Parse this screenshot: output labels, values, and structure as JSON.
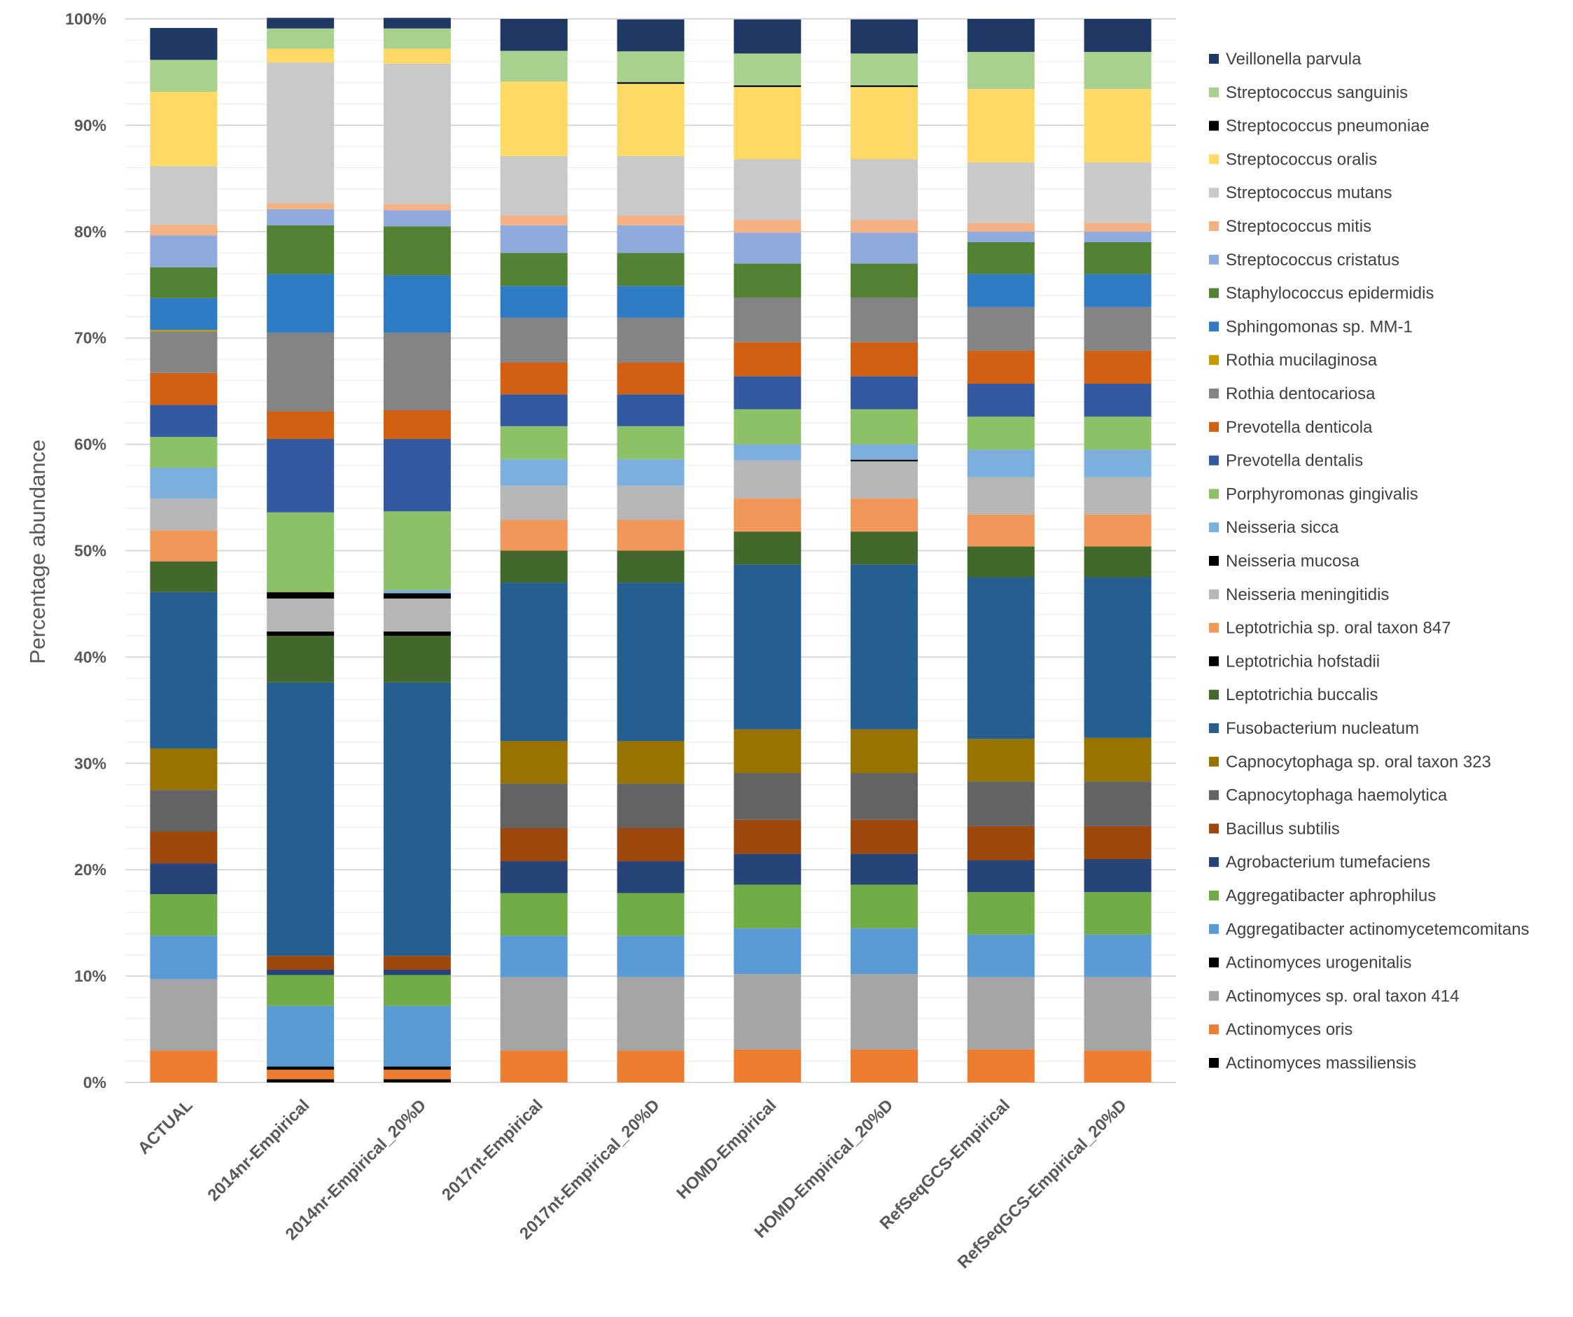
{
  "chart_data": {
    "type": "bar",
    "stacked": true,
    "ylabel": "Percentage abundance",
    "xlabel": "",
    "ylim": [
      0,
      100
    ],
    "yticks": [
      "0%",
      "10%",
      "20%",
      "30%",
      "40%",
      "50%",
      "60%",
      "70%",
      "80%",
      "90%",
      "100%"
    ],
    "grid": true,
    "legend_position": "right",
    "categories": [
      "ACTUAL",
      "2014nr-Empirical",
      "2014nr-Empirical_20%D",
      "2017nt-Empirical",
      "2017nt-Empirical_20%D",
      "HOMD-Empirical",
      "HOMD-Empirical_20%D",
      "RefSeqGCS-Empirical",
      "RefSeqGCS-Empirical_20%D"
    ],
    "series": [
      {
        "name": "Actinomyces massiliensis",
        "color": "#000000",
        "values": [
          0,
          0.3,
          0.3,
          0,
          0,
          0,
          0,
          0,
          0
        ]
      },
      {
        "name": "Actinomyces oris",
        "color": "#ED7D31",
        "values": [
          3.0,
          0.9,
          0.9,
          3.0,
          3.0,
          3.1,
          3.1,
          3.1,
          3.0
        ]
      },
      {
        "name": "Actinomyces sp. oral taxon 414",
        "color": "#A5A5A5",
        "values": [
          6.7,
          0,
          0,
          6.9,
          6.9,
          7.1,
          7.1,
          6.8,
          6.9
        ]
      },
      {
        "name": "Actinomyces urogenitalis",
        "color": "#000000",
        "values": [
          0,
          0.3,
          0.3,
          0,
          0,
          0,
          0,
          0,
          0
        ]
      },
      {
        "name": "Aggregatibacter actinomycetemcomitans",
        "color": "#5B9BD5",
        "values": [
          4.1,
          5.7,
          5.7,
          3.9,
          3.9,
          4.3,
          4.3,
          4.0,
          4.0
        ]
      },
      {
        "name": "Aggregatibacter aphrophilus",
        "color": "#70AD47",
        "values": [
          3.9,
          2.9,
          2.9,
          4.0,
          4.0,
          4.1,
          4.1,
          4.0,
          4.0
        ]
      },
      {
        "name": "Agrobacterium tumefaciens",
        "color": "#264478",
        "values": [
          2.9,
          0.5,
          0.5,
          3.0,
          3.0,
          2.9,
          2.9,
          3.0,
          3.1
        ]
      },
      {
        "name": "Bacillus subtilis",
        "color": "#9E480E",
        "values": [
          3.0,
          1.3,
          1.3,
          3.1,
          3.1,
          3.2,
          3.2,
          3.2,
          3.1
        ]
      },
      {
        "name": "Capnocytophaga haemolytica",
        "color": "#636363",
        "values": [
          3.9,
          0,
          0,
          4.2,
          4.2,
          4.4,
          4.4,
          4.2,
          4.2
        ]
      },
      {
        "name": "Capnocytophaga sp. oral taxon 323",
        "color": "#997300",
        "values": [
          3.9,
          0,
          0,
          4.0,
          4.0,
          4.1,
          4.1,
          4.0,
          4.1
        ]
      },
      {
        "name": "Fusobacterium nucleatum",
        "color": "#255E91",
        "values": [
          14.7,
          25.7,
          25.7,
          14.9,
          14.9,
          15.5,
          15.5,
          15.2,
          15.1
        ]
      },
      {
        "name": "Leptotrichia buccalis",
        "color": "#43682B",
        "values": [
          2.9,
          4.4,
          4.4,
          3.0,
          3.0,
          3.1,
          3.1,
          2.9,
          2.9
        ]
      },
      {
        "name": "Leptotrichia hofstadii",
        "color": "#000000",
        "values": [
          0,
          0.4,
          0.4,
          0,
          0,
          0,
          0,
          0,
          0
        ]
      },
      {
        "name": "Leptotrichia sp. oral taxon 847",
        "color": "#F1975A",
        "values": [
          2.9,
          0,
          0,
          2.9,
          2.9,
          3.1,
          3.1,
          3.0,
          3.0
        ]
      },
      {
        "name": "Neisseria meningitidis",
        "color": "#B7B7B7",
        "values": [
          3.0,
          3.1,
          3.1,
          3.2,
          3.2,
          3.6,
          3.5,
          3.5,
          3.5
        ]
      },
      {
        "name": "Neisseria mucosa",
        "color": "#000000",
        "values": [
          0,
          0.6,
          0.5,
          0,
          0,
          0,
          0.15,
          0,
          0
        ]
      },
      {
        "name": "Neisseria sicca",
        "color": "#7CAFDD",
        "values": [
          2.9,
          0,
          0.3,
          2.5,
          2.5,
          1.5,
          1.45,
          2.6,
          2.6
        ]
      },
      {
        "name": "Porphyromonas gingivalis",
        "color": "#8CC168",
        "values": [
          2.9,
          7.5,
          7.4,
          3.1,
          3.1,
          3.3,
          3.3,
          3.1,
          3.1
        ]
      },
      {
        "name": "Prevotella dentalis",
        "color": "#335AA1",
        "values": [
          3.0,
          6.9,
          6.8,
          3.0,
          3.0,
          3.1,
          3.1,
          3.1,
          3.1
        ]
      },
      {
        "name": "Prevotella denticola",
        "color": "#D26012",
        "values": [
          3.0,
          2.6,
          2.7,
          3.0,
          3.0,
          3.2,
          3.2,
          3.1,
          3.1
        ]
      },
      {
        "name": "Rothia dentocariosa",
        "color": "#848484",
        "values": [
          3.9,
          7.4,
          7.3,
          4.2,
          4.2,
          4.2,
          4.2,
          4.1,
          4.1
        ]
      },
      {
        "name": "Rothia mucilaginosa",
        "color": "#C49A00",
        "values": [
          0.15,
          0,
          0,
          0,
          0,
          0,
          0,
          0,
          0
        ]
      },
      {
        "name": "Sphingomonas sp. MM-1",
        "color": "#2E7BC4",
        "values": [
          3.0,
          5.5,
          5.4,
          3.0,
          3.0,
          0,
          0,
          3.1,
          3.1
        ]
      },
      {
        "name": "Staphylococcus epidermidis",
        "color": "#548235",
        "values": [
          2.9,
          4.6,
          4.6,
          3.1,
          3.1,
          3.2,
          3.2,
          3.0,
          3.0
        ]
      },
      {
        "name": "Streptococcus cristatus",
        "color": "#8FAADC",
        "values": [
          3.0,
          1.5,
          1.5,
          2.6,
          2.6,
          2.9,
          2.9,
          1.0,
          1.0
        ]
      },
      {
        "name": "Streptococcus mitis",
        "color": "#F4B183",
        "values": [
          1.0,
          0.6,
          0.6,
          0.9,
          0.9,
          1.2,
          1.2,
          0.8,
          0.8
        ]
      },
      {
        "name": "Streptococcus mutans",
        "color": "#C9C9C9",
        "values": [
          5.5,
          13.2,
          13.2,
          5.6,
          5.6,
          5.7,
          5.7,
          5.7,
          5.7
        ]
      },
      {
        "name": "Streptococcus oralis",
        "color": "#FFD966",
        "values": [
          7.0,
          1.3,
          1.4,
          7.0,
          6.8,
          6.8,
          6.8,
          6.9,
          6.9
        ]
      },
      {
        "name": "Streptococcus pneumoniae",
        "color": "#000000",
        "values": [
          0,
          0,
          0,
          0,
          0.15,
          0.15,
          0.15,
          0,
          0
        ]
      },
      {
        "name": "Streptococcus sanguinis",
        "color": "#A9D18E",
        "values": [
          3.0,
          1.9,
          1.9,
          2.9,
          2.9,
          3.0,
          3.0,
          3.5,
          3.5
        ]
      },
      {
        "name": "Veillonella parvula",
        "color": "#203864",
        "values": [
          3.0,
          1.0,
          1.0,
          3.0,
          3.0,
          3.2,
          3.2,
          3.1,
          3.1
        ]
      }
    ]
  }
}
